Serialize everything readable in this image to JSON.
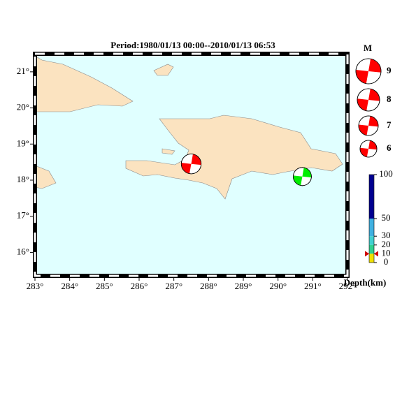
{
  "title": "Period:1980/01/13 00:00--2010/01/13 06:53",
  "lon_range": [
    283,
    292
  ],
  "lat_range": [
    15.35,
    21.5
  ],
  "lon_ticks": [
    {
      "value": 283,
      "label": "283°"
    },
    {
      "value": 284,
      "label": "284°"
    },
    {
      "value": 285,
      "label": "285°"
    },
    {
      "value": 286,
      "label": "286°"
    },
    {
      "value": 287,
      "label": "287°"
    },
    {
      "value": 288,
      "label": "288°"
    },
    {
      "value": 289,
      "label": "289°"
    },
    {
      "value": 290,
      "label": "290°"
    },
    {
      "value": 291,
      "label": "291°"
    },
    {
      "value": 292,
      "label": "292°"
    }
  ],
  "lat_ticks": [
    {
      "value": 21,
      "label": "21°"
    },
    {
      "value": 20,
      "label": "20°"
    },
    {
      "value": 19,
      "label": "19°"
    },
    {
      "value": 18,
      "label": "18°"
    },
    {
      "value": 17,
      "label": "17°"
    },
    {
      "value": 16,
      "label": "16°"
    }
  ],
  "events": [
    {
      "lon": 287.5,
      "lat": 18.45,
      "mag": 7.1,
      "depth": 10,
      "color": "#ff0000"
    },
    {
      "lon": 290.7,
      "lat": 18.1,
      "mag": 6.5,
      "depth": 15,
      "color": "#00ee00"
    }
  ],
  "magnitude_legend": {
    "title": "M",
    "values": [
      9,
      8,
      7,
      6
    ]
  },
  "depth_scale": {
    "title": "Depth(km)",
    "ticks": [
      100,
      50,
      30,
      20,
      10,
      0
    ],
    "colors": [
      "#000090",
      "#40b0e0",
      "#40d0d0",
      "#30d090",
      "#f0e000"
    ]
  }
}
